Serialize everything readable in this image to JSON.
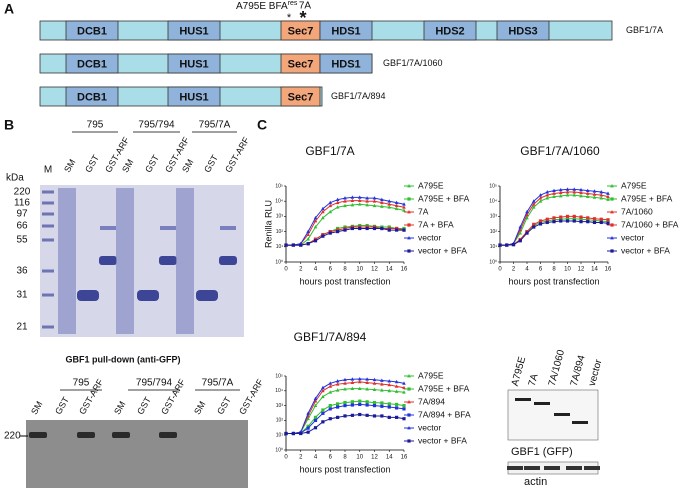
{
  "panel_a": {
    "letter": "A",
    "mutation_label": "A795E BFA",
    "mutation_superscript": "res",
    "mutant_label": "7A",
    "constructs": [
      {
        "name": "GBF1/7A",
        "domains": [
          "DCB1",
          "HUS1",
          "Sec7",
          "HDS1",
          "HDS2",
          "HDS3"
        ]
      },
      {
        "name": "GBF1/7A/1060",
        "domains": [
          "DCB1",
          "HUS1",
          "Sec7",
          "HDS1"
        ]
      },
      {
        "name": "GBF1/7A/894",
        "domains": [
          "DCB1",
          "HUS1",
          "Sec7"
        ]
      }
    ]
  },
  "panel_b": {
    "letter": "B",
    "gel": {
      "kda_label": "kDa",
      "marker_lane": "M",
      "kda": [
        "220",
        "116",
        "97",
        "66",
        "55",
        "36",
        "31",
        "21"
      ],
      "groups": [
        {
          "label": "795",
          "lanes": [
            "SM",
            "GST",
            "GST-ARF"
          ]
        },
        {
          "label": "795/794",
          "lanes": [
            "SM",
            "GST",
            "GST-ARF"
          ]
        },
        {
          "label": "795/7A",
          "lanes": [
            "SM",
            "GST",
            "GST-ARF"
          ]
        }
      ]
    },
    "pulldown": {
      "title": "GBF1 pull-down (anti-GFP)",
      "marker": "220",
      "groups": [
        {
          "label": "795",
          "lanes": [
            "SM",
            "GST",
            "GST-ARF"
          ]
        },
        {
          "label": "795/794",
          "lanes": [
            "SM",
            "GST",
            "GST-ARF"
          ]
        },
        {
          "label": "795/7A",
          "lanes": [
            "SM",
            "GST",
            "GST-ARF"
          ]
        }
      ]
    }
  },
  "panel_c": {
    "letter": "C",
    "blot": {
      "lanes": [
        "A795E",
        "7A",
        "7A/1060",
        "7A/894",
        "vector"
      ],
      "gfp_label": "GBF1 (GFP)",
      "actin_label": "actin"
    }
  },
  "chart_data": [
    {
      "type": "line",
      "title": "GBF1/7A",
      "xlabel": "hours post transfection",
      "ylabel": "Renilla RLU",
      "log_y": true,
      "x": [
        0,
        1,
        2,
        3,
        4,
        5,
        6,
        7,
        8,
        9,
        10,
        11,
        12,
        13,
        14,
        15,
        16
      ],
      "xlim": [
        0,
        16
      ],
      "xticks": [
        0,
        2,
        4,
        6,
        8,
        10,
        12,
        14,
        16
      ],
      "ylim": [
        1,
        100000
      ],
      "yticks": [
        {
          "value": 1,
          "label": "10⁰"
        },
        {
          "value": 10,
          "label": "10¹"
        },
        {
          "value": 100,
          "label": "10²"
        },
        {
          "value": 1000,
          "label": "10³"
        },
        {
          "value": 10000,
          "label": "10⁴"
        },
        {
          "value": 100000,
          "label": "10⁵"
        }
      ],
      "series": [
        {
          "name": "A795E",
          "color": "#2fbf2f",
          "values": [
            13,
            13,
            13,
            32,
            200,
            800,
            2000,
            4000,
            5000,
            5600,
            6300,
            5600,
            5000,
            4500,
            4000,
            3200,
            2500
          ]
        },
        {
          "name": "A795E + BFA",
          "color": "#2fbf2f",
          "values": [
            13,
            13,
            13,
            16,
            32,
            63,
            100,
            160,
            200,
            220,
            250,
            250,
            220,
            200,
            200,
            160,
            160
          ]
        },
        {
          "name": "7A",
          "color": "#e0302a",
          "values": [
            13,
            13,
            16,
            63,
            500,
            2000,
            5000,
            8000,
            10000,
            11000,
            11000,
            10000,
            10000,
            8000,
            6300,
            5000,
            4000
          ]
        },
        {
          "name": "7A + BFA",
          "color": "#e0302a",
          "values": [
            13,
            13,
            13,
            16,
            32,
            63,
            100,
            126,
            160,
            200,
            200,
            200,
            200,
            160,
            160,
            160,
            126
          ]
        },
        {
          "name": "vector",
          "color": "#2233dd",
          "values": [
            13,
            13,
            16,
            100,
            800,
            3200,
            8000,
            12600,
            16000,
            18000,
            18000,
            16000,
            16000,
            12600,
            10000,
            8000,
            6300
          ]
        },
        {
          "name": "vector + BFA",
          "color": "#1a1a9c",
          "values": [
            13,
            13,
            13,
            16,
            25,
            50,
            80,
            100,
            126,
            160,
            160,
            160,
            160,
            160,
            126,
            126,
            126
          ]
        }
      ]
    },
    {
      "type": "line",
      "title": "GBF1/7A/1060",
      "xlabel": "hours post transfection",
      "log_y": true,
      "x": [
        0,
        1,
        2,
        3,
        4,
        5,
        6,
        7,
        8,
        9,
        10,
        11,
        12,
        13,
        14,
        15,
        16
      ],
      "xlim": [
        0,
        16
      ],
      "xticks": [
        0,
        2,
        4,
        6,
        8,
        10,
        12,
        14,
        16
      ],
      "ylim": [
        1,
        100000
      ],
      "yticks": [
        {
          "value": 1,
          "label": "10⁰"
        },
        {
          "value": 10,
          "label": "10¹"
        },
        {
          "value": 100,
          "label": "10²"
        },
        {
          "value": 1000,
          "label": "10³"
        },
        {
          "value": 10000,
          "label": "10⁴"
        },
        {
          "value": 100000,
          "label": "10⁵"
        }
      ],
      "series": [
        {
          "name": "A795E",
          "color": "#2fbf2f",
          "values": [
            13,
            13,
            16,
            80,
            800,
            4000,
            10000,
            16000,
            20000,
            22000,
            25000,
            25000,
            22000,
            20000,
            18000,
            16000,
            13000
          ]
        },
        {
          "name": "A795E + BFA",
          "color": "#2fbf2f",
          "values": [
            13,
            13,
            14,
            30,
            100,
            250,
            400,
            500,
            600,
            650,
            700,
            700,
            650,
            600,
            550,
            500,
            450
          ]
        },
        {
          "name": "7A/1060",
          "color": "#e0302a",
          "values": [
            13,
            13,
            16,
            130,
            1300,
            6300,
            16000,
            25000,
            32000,
            36000,
            40000,
            40000,
            36000,
            32000,
            28000,
            25000,
            20000
          ]
        },
        {
          "name": "7A/1060 + BFA",
          "color": "#e0302a",
          "values": [
            13,
            13,
            14,
            30,
            100,
            300,
            500,
            650,
            800,
            900,
            1000,
            1000,
            900,
            800,
            700,
            650,
            600
          ]
        },
        {
          "name": "vector",
          "color": "#2233dd",
          "values": [
            13,
            13,
            16,
            200,
            2000,
            10000,
            25000,
            40000,
            50000,
            56000,
            60000,
            60000,
            56000,
            50000,
            45000,
            40000,
            32000
          ]
        },
        {
          "name": "vector + BFA",
          "color": "#1a1a9c",
          "values": [
            13,
            13,
            14,
            25,
            80,
            200,
            320,
            400,
            450,
            500,
            500,
            500,
            450,
            450,
            400,
            400,
            350
          ]
        }
      ]
    },
    {
      "type": "line",
      "title": "GBF1/7A/894",
      "xlabel": "hours post transfection",
      "log_y": true,
      "x": [
        0,
        1,
        2,
        3,
        4,
        5,
        6,
        7,
        8,
        9,
        10,
        11,
        12,
        13,
        14,
        15,
        16
      ],
      "xlim": [
        0,
        16
      ],
      "xticks": [
        0,
        2,
        4,
        6,
        8,
        10,
        12,
        14,
        16
      ],
      "ylim": [
        1,
        100000
      ],
      "yticks": [
        {
          "value": 1,
          "label": "10⁰"
        },
        {
          "value": 10,
          "label": "10¹"
        },
        {
          "value": 100,
          "label": "10²"
        },
        {
          "value": 1000,
          "label": "10³"
        },
        {
          "value": 10000,
          "label": "10⁴"
        },
        {
          "value": 100000,
          "label": "10⁵"
        }
      ],
      "series": [
        {
          "name": "A795E",
          "color": "#2fbf2f",
          "values": [
            13,
            13,
            16,
            130,
            1000,
            4000,
            8000,
            11000,
            13000,
            14000,
            14000,
            13000,
            12000,
            11000,
            10000,
            9000,
            8000
          ]
        },
        {
          "name": "A795E + BFA",
          "color": "#2fbf2f",
          "values": [
            13,
            13,
            14,
            40,
            160,
            500,
            1000,
            1300,
            1600,
            1800,
            2000,
            1800,
            1600,
            1500,
            1300,
            1200,
            1000
          ]
        },
        {
          "name": "7A/894",
          "color": "#e0302a",
          "values": [
            13,
            13,
            16,
            200,
            2000,
            10000,
            20000,
            28000,
            32000,
            36000,
            40000,
            36000,
            32000,
            28000,
            25000,
            20000,
            16000
          ]
        },
        {
          "name": "7A/894 + BFA",
          "color": "#2233dd",
          "values": [
            13,
            13,
            14,
            30,
            100,
            300,
            600,
            800,
            1000,
            1100,
            1200,
            1100,
            1000,
            900,
            800,
            700,
            600
          ]
        },
        {
          "name": "vector",
          "color": "#2233dd",
          "values": [
            13,
            13,
            16,
            300,
            3000,
            16000,
            32000,
            45000,
            56000,
            60000,
            63000,
            60000,
            56000,
            50000,
            45000,
            40000,
            32000
          ]
        },
        {
          "name": "vector + BFA",
          "color": "#1a1a9c",
          "values": [
            13,
            13,
            13,
            16,
            32,
            80,
            130,
            160,
            200,
            220,
            250,
            220,
            200,
            200,
            160,
            160,
            130
          ]
        }
      ]
    }
  ]
}
